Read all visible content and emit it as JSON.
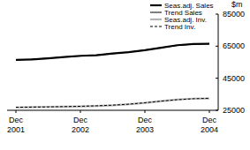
{
  "chart_data": {
    "type": "line",
    "y_label": "$m",
    "categories": [
      "Dec 2001",
      null,
      null,
      null,
      "Dec 2002",
      null,
      null,
      null,
      "Dec 2003",
      null,
      null,
      null,
      "Dec 2004"
    ],
    "series": [
      {
        "name": "Seas.adj. Sales",
        "color": "#000000",
        "line_style": "solid",
        "values": [
          56500,
          56700,
          57400,
          58200,
          59000,
          59300,
          60400,
          61300,
          62500,
          64000,
          65600,
          66400,
          66500
        ]
      },
      {
        "name": "Trend Sales",
        "color": "#000000",
        "line_style": "solid",
        "values": [
          56400,
          56900,
          57500,
          58300,
          58800,
          59500,
          60300,
          61300,
          62600,
          64100,
          65400,
          66200,
          66600
        ]
      },
      {
        "name": "Seas.adj. Inv.",
        "color": "#b4b4b4",
        "line_style": "solid",
        "values": [
          26800,
          27000,
          27200,
          27300,
          27400,
          27700,
          28100,
          28800,
          29600,
          30700,
          31700,
          32300,
          32400
        ]
      },
      {
        "name": "Trend Inv.",
        "color": "#000000",
        "line_style": "dashed",
        "values": [
          26900,
          27000,
          27100,
          27300,
          27500,
          27800,
          28200,
          28800,
          29700,
          30700,
          31600,
          32200,
          32500
        ]
      }
    ],
    "ylim": [
      25000,
      85000
    ],
    "yticks": [
      25000,
      45000,
      65000,
      85000
    ],
    "grid": false,
    "legend": "top-right"
  }
}
